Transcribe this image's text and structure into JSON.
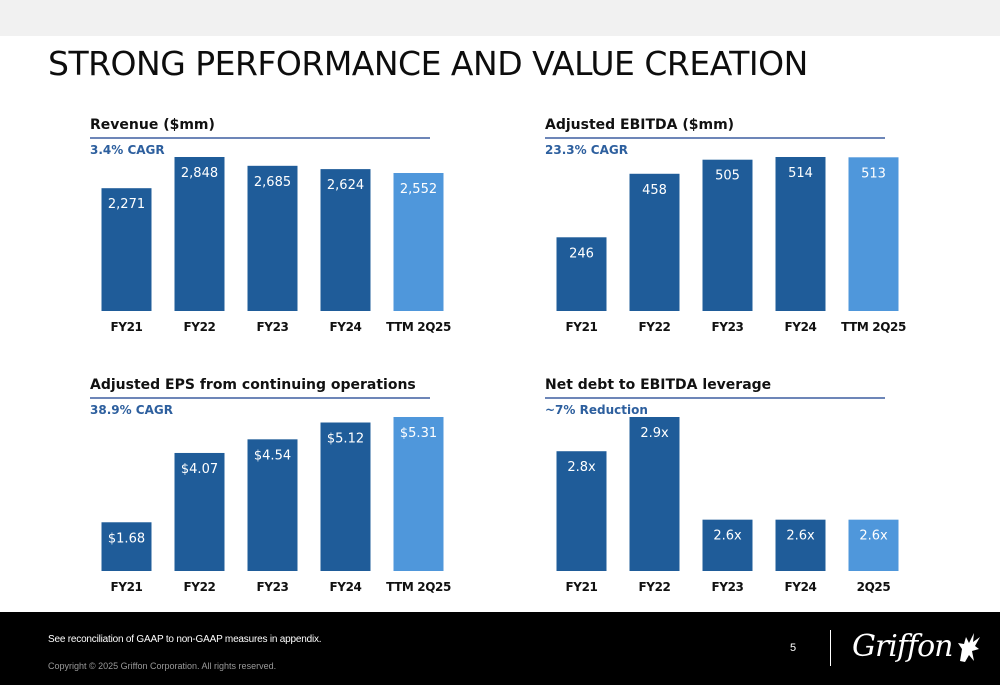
{
  "slide": {
    "title": "STRONG PERFORMANCE AND VALUE CREATION"
  },
  "colors": {
    "dark_bar": "#1f5c99",
    "light_bar": "#4f97db",
    "accent_rule": "#6d86b8",
    "subtitle": "#2d5f9e"
  },
  "panels": [
    {
      "title": "Revenue ($mm)",
      "subtitle": "3.4% CAGR",
      "chart_data": {
        "type": "bar",
        "categories": [
          "FY21",
          "FY22",
          "FY23",
          "FY24",
          "TTM 2Q25"
        ],
        "values": [
          2271,
          2848,
          2685,
          2624,
          2552
        ],
        "labels": [
          "2,271",
          "2,848",
          "2,685",
          "2,624",
          "2,552"
        ],
        "highlight_last": true,
        "ylim": [
          0,
          2848
        ]
      }
    },
    {
      "title": "Adjusted EBITDA ($mm)",
      "subtitle": "23.3% CAGR",
      "chart_data": {
        "type": "bar",
        "categories": [
          "FY21",
          "FY22",
          "FY23",
          "FY24",
          "TTM 2Q25"
        ],
        "values": [
          246,
          458,
          505,
          514,
          513
        ],
        "labels": [
          "246",
          "458",
          "505",
          "514",
          "513"
        ],
        "highlight_last": true,
        "ylim": [
          0,
          514
        ]
      }
    },
    {
      "title": "Adjusted EPS from continuing operations",
      "subtitle": "38.9% CAGR",
      "chart_data": {
        "type": "bar",
        "categories": [
          "FY21",
          "FY22",
          "FY23",
          "FY24",
          "TTM 2Q25"
        ],
        "values": [
          1.68,
          4.07,
          4.54,
          5.12,
          5.31
        ],
        "labels": [
          "$1.68",
          "$4.07",
          "$4.54",
          "$5.12",
          "$5.31"
        ],
        "highlight_last": true,
        "ylim": [
          0,
          5.31
        ]
      }
    },
    {
      "title": "Net debt to EBITDA leverage",
      "subtitle": "~7% Reduction",
      "chart_data": {
        "type": "bar",
        "categories": [
          "FY21",
          "FY22",
          "FY23",
          "FY24",
          "2Q25"
        ],
        "values": [
          2.8,
          2.9,
          2.6,
          2.6,
          2.6
        ],
        "labels": [
          "2.8x",
          "2.9x",
          "2.6x",
          "2.6x",
          "2.6x"
        ],
        "highlight_last": true,
        "ylim": [
          2.45,
          2.9
        ]
      }
    }
  ],
  "footer": {
    "note": "See reconciliation of GAAP to non-GAAP measures in appendix.",
    "copyright": "Copyright © 2025 Griffon Corporation. All rights reserved.",
    "page_number": "5",
    "logo_text": "Griffon",
    "logo_icon": "griffin-icon"
  }
}
